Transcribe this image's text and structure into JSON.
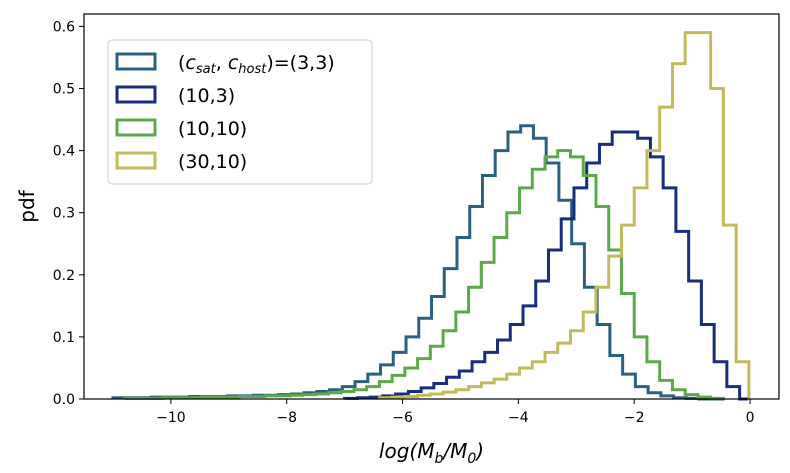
{
  "chart_data": {
    "type": "step-histogram",
    "xlabel": "log(M_b/M_0)",
    "ylabel": "pdf",
    "xlim": [
      -11.5,
      0.5
    ],
    "ylim": [
      0,
      0.62
    ],
    "xticks": [
      -10,
      -8,
      -6,
      -4,
      -2,
      0
    ],
    "xtick_labels": [
      "−10",
      "−8",
      "−6",
      "−4",
      "−2",
      "0"
    ],
    "yticks": [
      0.0,
      0.1,
      0.2,
      0.3,
      0.4,
      0.5,
      0.6
    ],
    "ytick_labels": [
      "0.0",
      "0.1",
      "0.2",
      "0.3",
      "0.4",
      "0.5",
      "0.6"
    ],
    "legend_position": "upper-left",
    "series": [
      {
        "name": "(c_sat, c_host)=(3,3)",
        "legend_prefix": "(",
        "legend_c1": "c",
        "legend_sub1": "sat",
        "legend_mid": ", ",
        "legend_c2": "c",
        "legend_sub2": "host",
        "legend_suffix": ")=(3,3)",
        "color": "#2b6180",
        "edges": [
          -11.0,
          -10.78,
          -10.56,
          -10.34,
          -10.12,
          -9.9,
          -9.68,
          -9.46,
          -9.24,
          -9.02,
          -8.8,
          -8.58,
          -8.36,
          -8.14,
          -7.92,
          -7.7,
          -7.48,
          -7.26,
          -7.04,
          -6.82,
          -6.6,
          -6.38,
          -6.16,
          -5.94,
          -5.72,
          -5.5,
          -5.28,
          -5.06,
          -4.84,
          -4.62,
          -4.4,
          -4.18,
          -3.96,
          -3.74,
          -3.52,
          -3.3,
          -3.08,
          -2.86,
          -2.64,
          -2.42,
          -2.2,
          -1.98,
          -1.76,
          -1.54,
          -1.32,
          -1.1,
          -0.88,
          -0.66,
          -0.44
        ],
        "values": [
          0.002,
          0.002,
          0.002,
          0.003,
          0.003,
          0.003,
          0.004,
          0.004,
          0.004,
          0.005,
          0.005,
          0.006,
          0.006,
          0.007,
          0.008,
          0.01,
          0.012,
          0.015,
          0.02,
          0.028,
          0.04,
          0.055,
          0.075,
          0.1,
          0.13,
          0.165,
          0.21,
          0.26,
          0.31,
          0.36,
          0.4,
          0.43,
          0.44,
          0.42,
          0.38,
          0.32,
          0.25,
          0.18,
          0.12,
          0.07,
          0.04,
          0.02,
          0.01,
          0.005,
          0.002,
          0.001,
          0.0,
          0.0
        ]
      },
      {
        "name": "(10,3)",
        "legend_label": "(10,3)",
        "color": "#182d7c",
        "edges": [
          -7.0,
          -6.78,
          -6.56,
          -6.34,
          -6.12,
          -5.9,
          -5.68,
          -5.46,
          -5.24,
          -5.02,
          -4.8,
          -4.58,
          -4.36,
          -4.14,
          -3.92,
          -3.7,
          -3.48,
          -3.26,
          -3.04,
          -2.82,
          -2.6,
          -2.38,
          -2.16,
          -1.94,
          -1.72,
          -1.5,
          -1.28,
          -1.06,
          -0.84,
          -0.62,
          -0.4,
          -0.18,
          -0.04
        ],
        "values": [
          0.001,
          0.002,
          0.003,
          0.005,
          0.008,
          0.012,
          0.018,
          0.025,
          0.035,
          0.045,
          0.06,
          0.075,
          0.095,
          0.12,
          0.15,
          0.19,
          0.24,
          0.29,
          0.34,
          0.38,
          0.41,
          0.43,
          0.43,
          0.42,
          0.39,
          0.34,
          0.27,
          0.19,
          0.12,
          0.06,
          0.02,
          0.0
        ]
      },
      {
        "name": "(10,10)",
        "legend_label": "(10,10)",
        "color": "#5ea84c",
        "edges": [
          -10.8,
          -10.58,
          -10.36,
          -10.14,
          -9.92,
          -9.7,
          -9.48,
          -9.26,
          -9.04,
          -8.82,
          -8.6,
          -8.38,
          -8.16,
          -7.94,
          -7.72,
          -7.5,
          -7.28,
          -7.06,
          -6.84,
          -6.62,
          -6.4,
          -6.18,
          -5.96,
          -5.74,
          -5.52,
          -5.3,
          -5.08,
          -4.86,
          -4.64,
          -4.42,
          -4.2,
          -3.98,
          -3.76,
          -3.54,
          -3.32,
          -3.1,
          -2.88,
          -2.66,
          -2.44,
          -2.22,
          -2.0,
          -1.78,
          -1.56,
          -1.34,
          -1.12,
          -0.9,
          -0.68,
          -0.46
        ],
        "values": [
          0.001,
          0.001,
          0.001,
          0.002,
          0.002,
          0.002,
          0.003,
          0.003,
          0.003,
          0.004,
          0.004,
          0.005,
          0.005,
          0.006,
          0.007,
          0.008,
          0.01,
          0.012,
          0.015,
          0.02,
          0.028,
          0.038,
          0.05,
          0.065,
          0.085,
          0.11,
          0.14,
          0.18,
          0.22,
          0.26,
          0.3,
          0.34,
          0.37,
          0.39,
          0.4,
          0.39,
          0.36,
          0.31,
          0.24,
          0.17,
          0.1,
          0.06,
          0.03,
          0.015,
          0.007,
          0.003,
          0.001
        ]
      },
      {
        "name": "(30,10)",
        "legend_label": "(30,10)",
        "color": "#c2bb5e",
        "edges": [
          -6.4,
          -6.18,
          -5.96,
          -5.74,
          -5.52,
          -5.3,
          -5.08,
          -4.86,
          -4.64,
          -4.42,
          -4.2,
          -3.98,
          -3.76,
          -3.54,
          -3.32,
          -3.1,
          -2.88,
          -2.66,
          -2.44,
          -2.22,
          -2.0,
          -1.78,
          -1.56,
          -1.34,
          -1.12,
          -0.9,
          -0.68,
          -0.46,
          -0.24,
          -0.02
        ],
        "values": [
          0.002,
          0.003,
          0.004,
          0.006,
          0.008,
          0.011,
          0.015,
          0.02,
          0.026,
          0.032,
          0.04,
          0.05,
          0.06,
          0.075,
          0.09,
          0.11,
          0.14,
          0.18,
          0.23,
          0.28,
          0.34,
          0.4,
          0.47,
          0.54,
          0.59,
          0.59,
          0.5,
          0.28,
          0.06
        ]
      }
    ]
  }
}
